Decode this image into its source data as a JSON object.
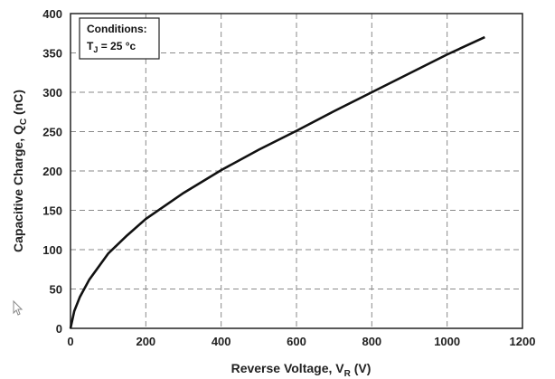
{
  "chart_data": {
    "type": "line",
    "xlabel": "Reverse Voltage, V",
    "xlabel_sub": "R",
    "xlabel_unit": " (V)",
    "ylabel": "Capacitive Charge, Q",
    "ylabel_sub": "C",
    "ylabel_unit": " (nC)",
    "xlim": [
      0,
      1200
    ],
    "ylim": [
      0,
      400
    ],
    "xticks": [
      0,
      200,
      400,
      600,
      800,
      1000,
      1200
    ],
    "yticks": [
      0,
      50,
      100,
      150,
      200,
      250,
      300,
      350,
      400
    ],
    "grid": true,
    "annotation": {
      "title": "Conditions:",
      "line_prefix": "T",
      "line_sub": "J",
      "line_suffix": " = 25 °c"
    },
    "series": [
      {
        "x": [
          0,
          10,
          25,
          50,
          100,
          150,
          200,
          300,
          400,
          500,
          600,
          700,
          800,
          900,
          1000,
          1100
        ],
        "y": [
          0,
          22,
          40,
          62,
          95,
          118,
          139,
          172,
          201,
          227,
          251,
          276,
          300,
          324,
          348,
          370
        ]
      }
    ]
  }
}
